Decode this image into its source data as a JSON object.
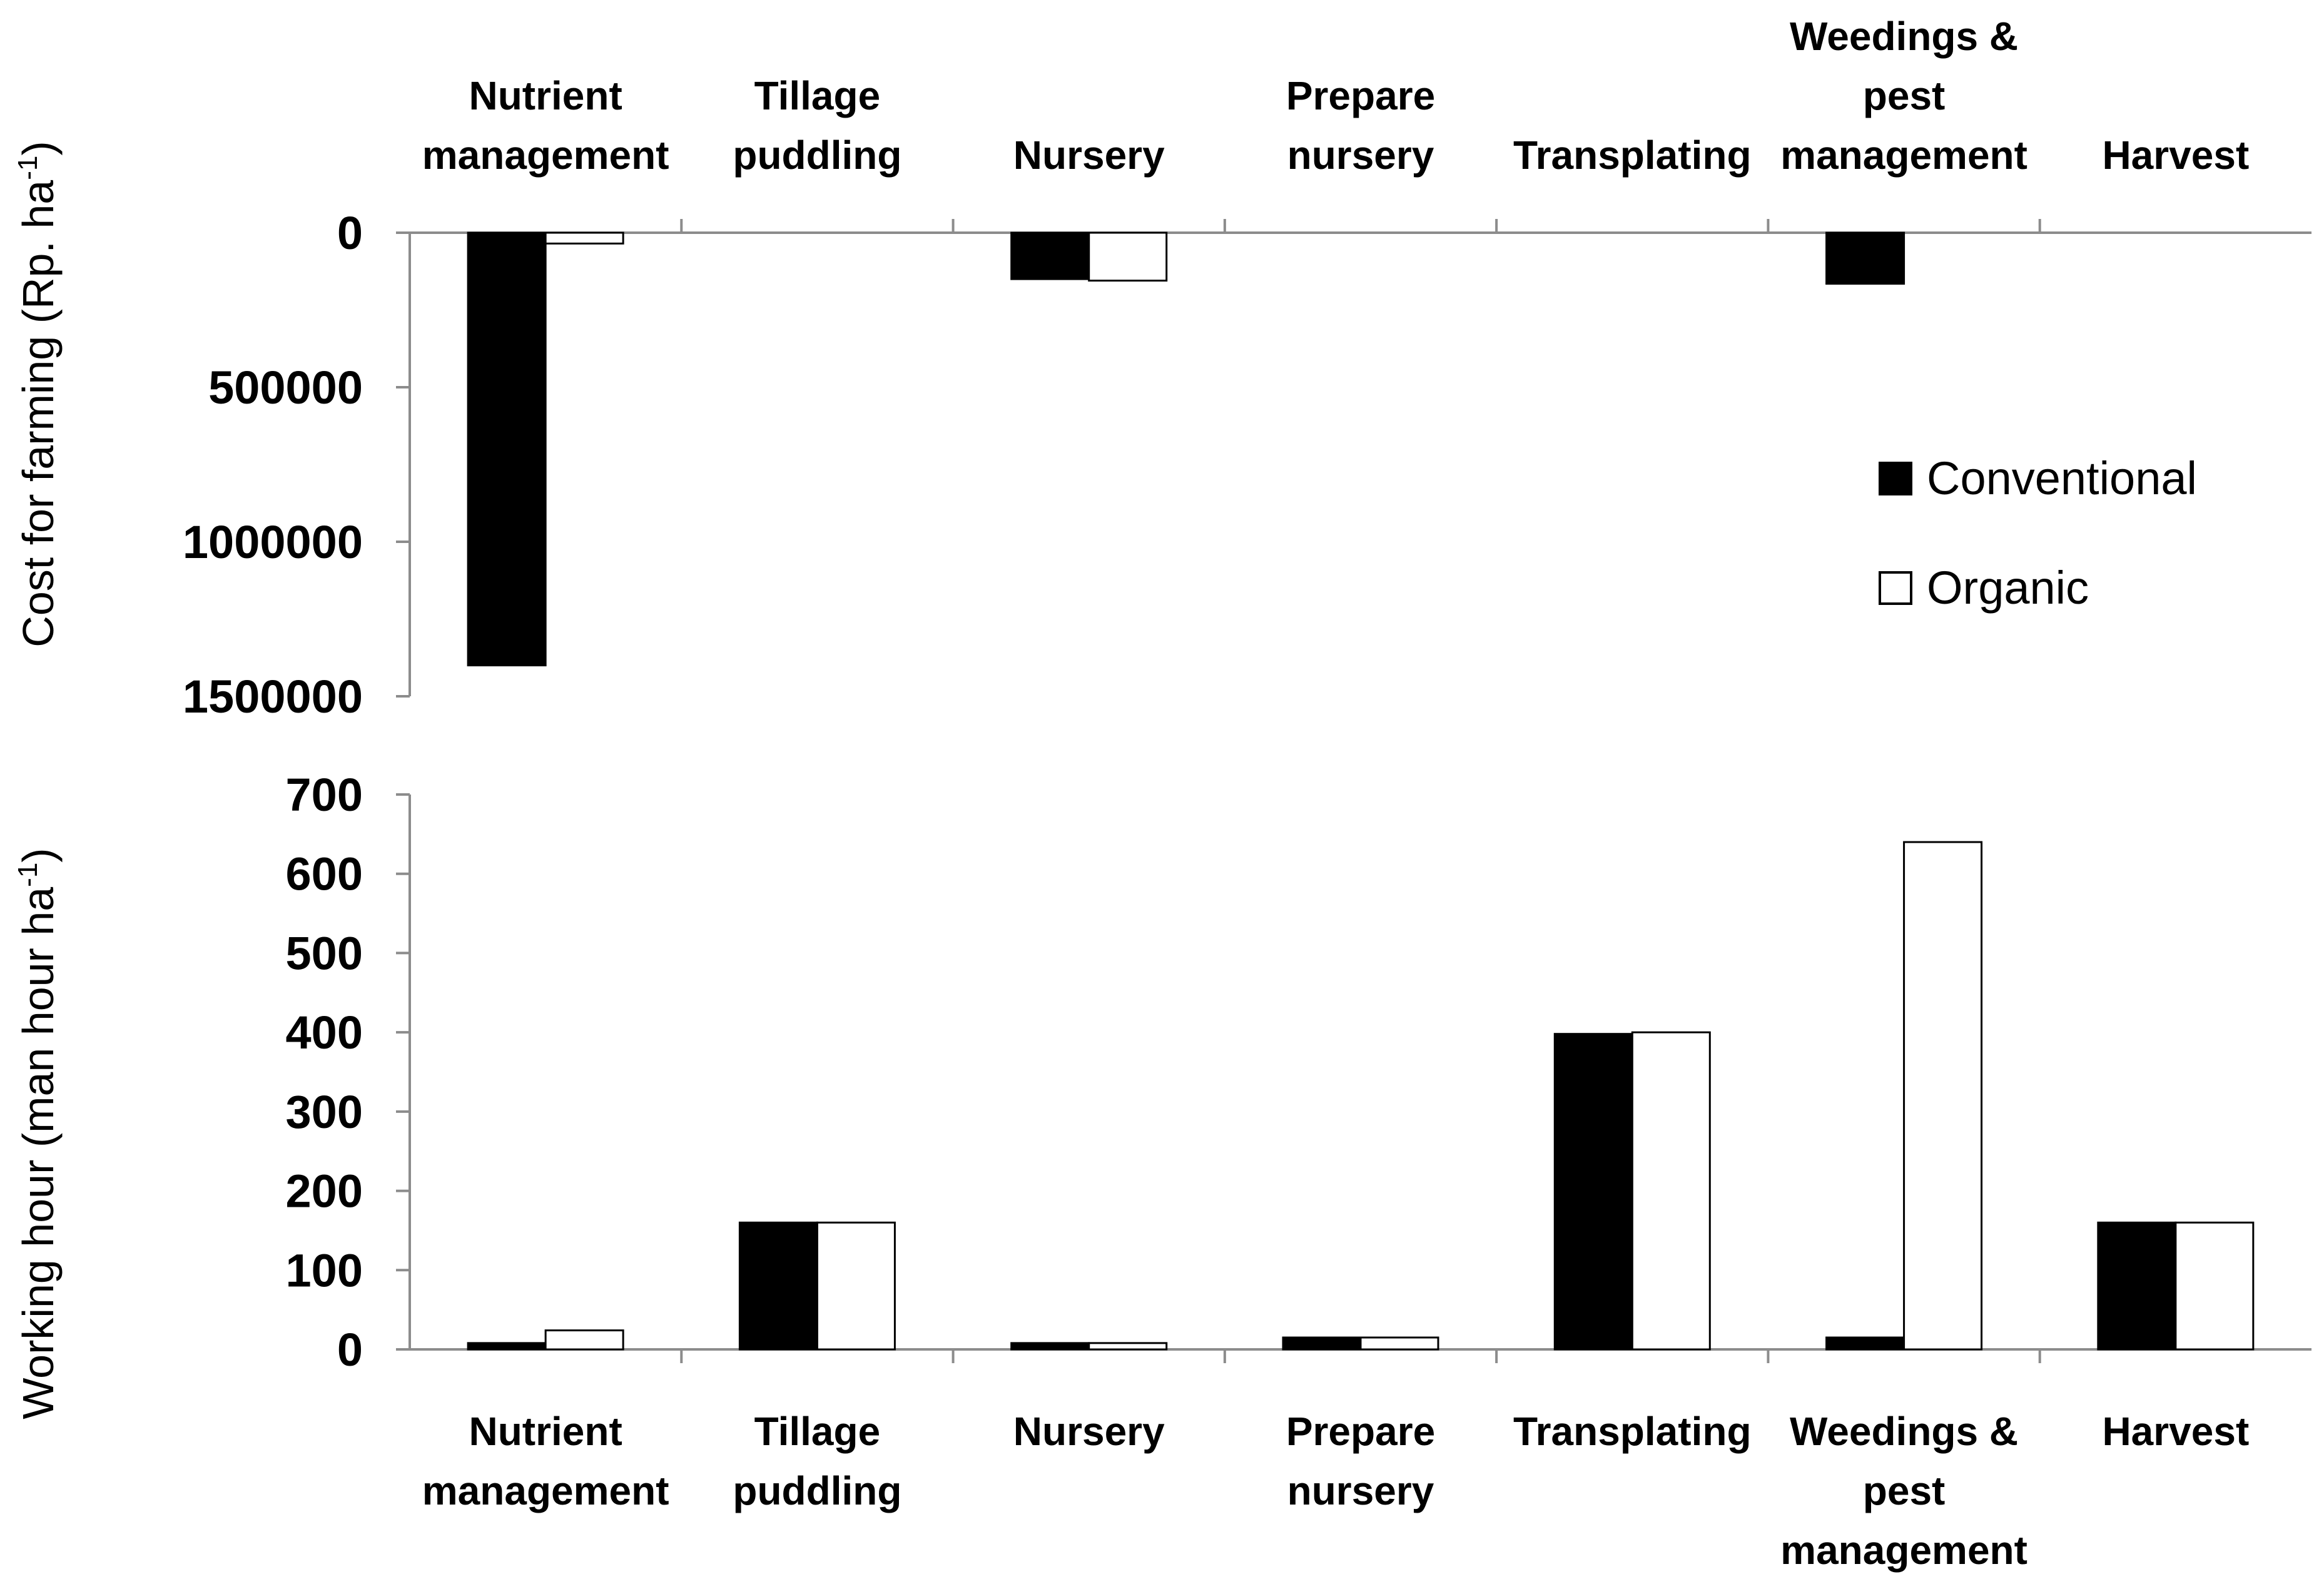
{
  "chart_data": [
    {
      "type": "bar",
      "id": "cost",
      "title": "",
      "orientation": "inverted",
      "categories": [
        "Nutrient\nmanagement",
        "Tillage\npuddling",
        "Nursery",
        "Prepare\nnursery",
        "Transplating",
        "Weedings &\npest\nmanagement",
        "Harvest"
      ],
      "series": [
        {
          "name": "Conventional",
          "color": "#000000",
          "values": [
            1400000,
            0,
            150000,
            0,
            0,
            165000,
            0
          ]
        },
        {
          "name": "Organic",
          "color": "#ffffff",
          "values": [
            35000,
            0,
            155000,
            0,
            0,
            0,
            0
          ]
        }
      ],
      "ylabel": "Cost for farming (Rp. ha",
      "ylabel_sup": "-1",
      "ylabel_suffix": ")",
      "ylim": [
        0,
        1500000
      ],
      "yticks": [
        0,
        500000,
        1000000,
        1500000
      ],
      "ytick_labels": [
        "0",
        "500000",
        "1000000",
        "1500000"
      ],
      "category_axis_position": "top",
      "legend": "right"
    },
    {
      "type": "bar",
      "id": "hours",
      "title": "",
      "categories": [
        "Nutrient\nmanagement",
        "Tillage\npuddling",
        "Nursery",
        "Prepare\nnursery",
        "Transplating",
        "Weedings &\npest\nmanagement",
        "Harvest"
      ],
      "series": [
        {
          "name": "Conventional",
          "color": "#000000",
          "values": [
            8,
            160,
            8,
            15,
            398,
            15,
            160
          ]
        },
        {
          "name": "Organic",
          "color": "#ffffff",
          "values": [
            24,
            160,
            8,
            15,
            400,
            640,
            160
          ]
        }
      ],
      "ylabel": "Working hour  (man hour ha",
      "ylabel_sup": "-1",
      "ylabel_suffix": ")",
      "ylim": [
        0,
        700
      ],
      "yticks": [
        0,
        100,
        200,
        300,
        400,
        500,
        600,
        700
      ],
      "ytick_labels": [
        "0",
        "100",
        "200",
        "300",
        "400",
        "500",
        "600",
        "700"
      ],
      "category_axis_position": "bottom"
    }
  ],
  "legend": {
    "items": [
      {
        "label": "Conventional",
        "swatch": "■",
        "color": "#000000"
      },
      {
        "label": "Organic",
        "swatch": "☐",
        "color": "#ffffff"
      }
    ]
  }
}
